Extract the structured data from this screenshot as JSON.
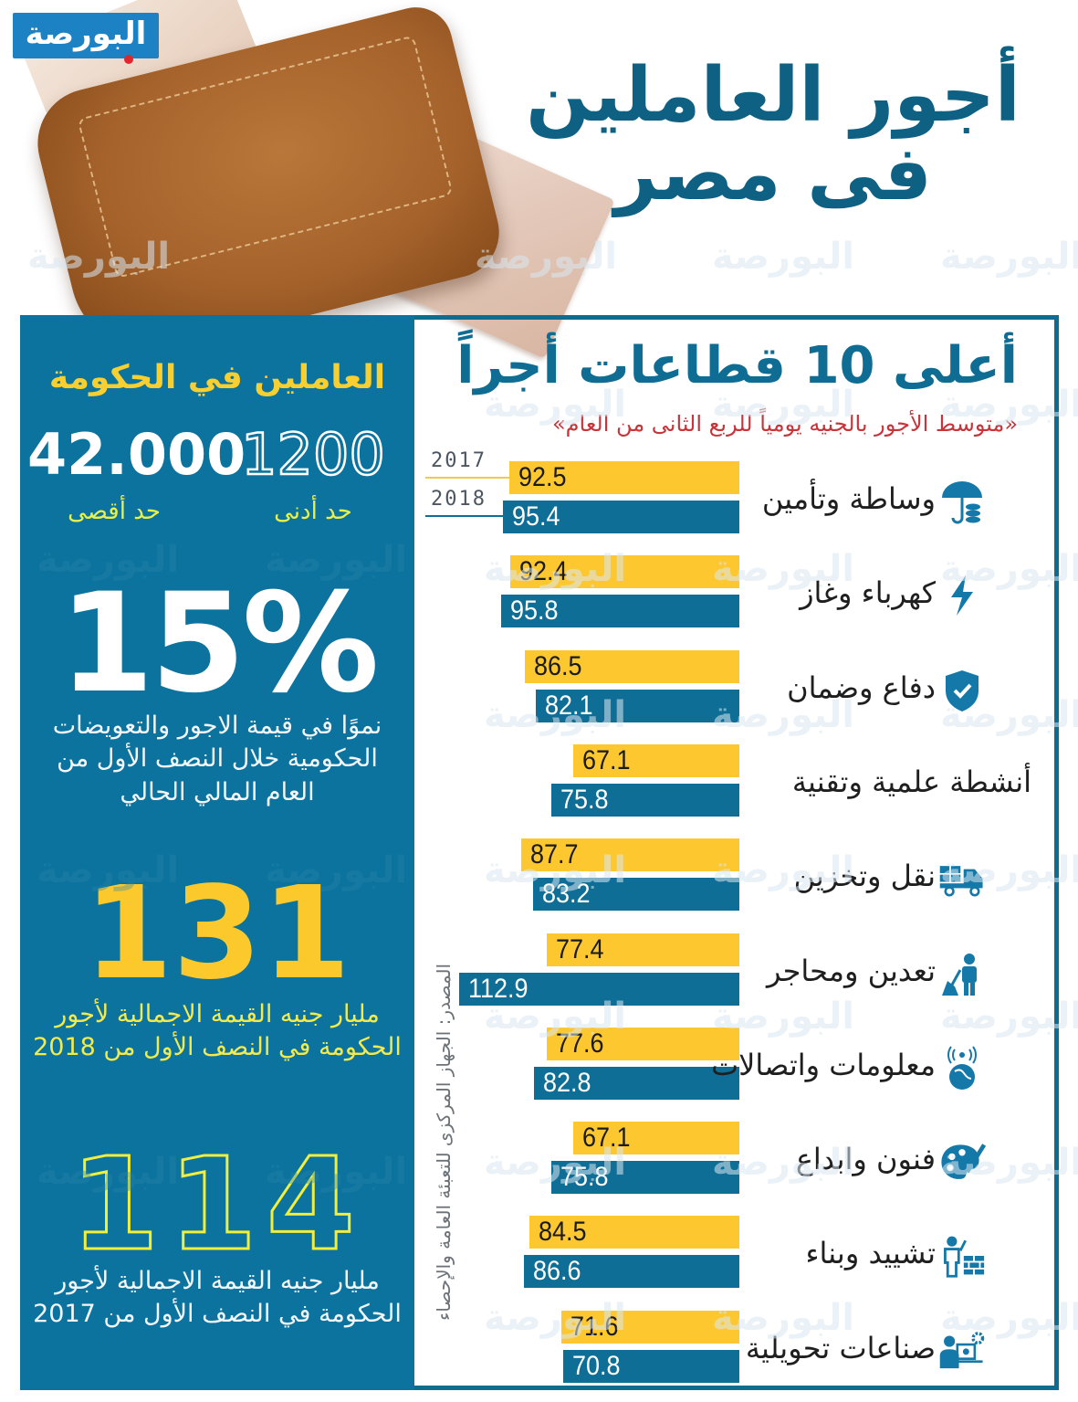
{
  "header": {
    "logo_text": "البورصة",
    "title_line1": "أجور العاملين",
    "title_line2": "فى مصر",
    "watermark": "البورصة"
  },
  "government_panel": {
    "title": "العاملين في الحكومة",
    "min_wage": {
      "value": "1200",
      "label": "حد أدنى"
    },
    "max_wage": {
      "value": "42.000",
      "label": "حد أقصى"
    },
    "growth": {
      "value": "15%",
      "description": "نموًا في قيمة الاجور والتعويضات الحكومية خلال النصف الأول من العام المالي الحالي"
    },
    "total_2018": {
      "value": "131",
      "description": "مليار جنيه القيمة الاجمالية لأجور الحكومة في النصف الأول من 2018"
    },
    "total_2017": {
      "value": "114",
      "description": "مليار جنيه القيمة الاجمالية لأجور الحكومة في النصف الأول من 2017"
    }
  },
  "chart_section": {
    "title": "أعلى 10 قطاعات أجراً",
    "subtitle": "«متوسط الأجور بالجنيه يومياً للربع الثانى من العام»",
    "legend": {
      "y2017": "2017",
      "y2018": "2018"
    },
    "source": "المصدر: الجهاز المركزى للتعبئة العامة والإحصاء"
  },
  "colors": {
    "primary_blue": "#0f6e96",
    "panel_blue": "#0b739d",
    "bar_2017_yellow": "#fdc72f",
    "title_blue": "#0f6183",
    "subtitle_red": "#c8343b",
    "highlight_yellow": "#f8cf31"
  },
  "chart_data": {
    "type": "bar",
    "orientation": "horizontal",
    "title": "أعلى 10 قطاعات أجراً",
    "subtitle": "متوسط الأجور بالجنيه يومياً للربع الثانى من العام",
    "xlabel": "",
    "ylabel": "",
    "unit": "EGP per day",
    "grid": false,
    "legend_position": "top-left",
    "categories": [
      "وساطة وتأمين",
      "كهرباء وغاز",
      "دفاع وضمان",
      "أنشطة علمية  وتقنية",
      "نقل وتخزين",
      "تعدين ومحاجر",
      "معلومات واتصالات",
      "فنون وابداع",
      "تشييد وبناء",
      "صناعات تحويلية"
    ],
    "icons": [
      "umbrella-coins-icon",
      "lightning-icon",
      "shield-check-icon",
      "",
      "truck-icon",
      "miner-icon",
      "globe-antenna-icon",
      "palette-icon",
      "builder-bricks-icon",
      "engineer-laptop-gear-icon"
    ],
    "series": [
      {
        "name": "2017",
        "color": "#fdc72f",
        "values": [
          92.5,
          92.4,
          86.5,
          67.1,
          87.7,
          77.4,
          77.6,
          67.1,
          84.5,
          71.6
        ]
      },
      {
        "name": "2018",
        "color": "#0f6e96",
        "values": [
          95.4,
          95.8,
          82.1,
          75.8,
          83.2,
          112.9,
          82.8,
          75.8,
          86.6,
          70.8
        ]
      }
    ],
    "source": "المصدر: الجهاز المركزى للتعبئة العامة والإحصاء"
  }
}
